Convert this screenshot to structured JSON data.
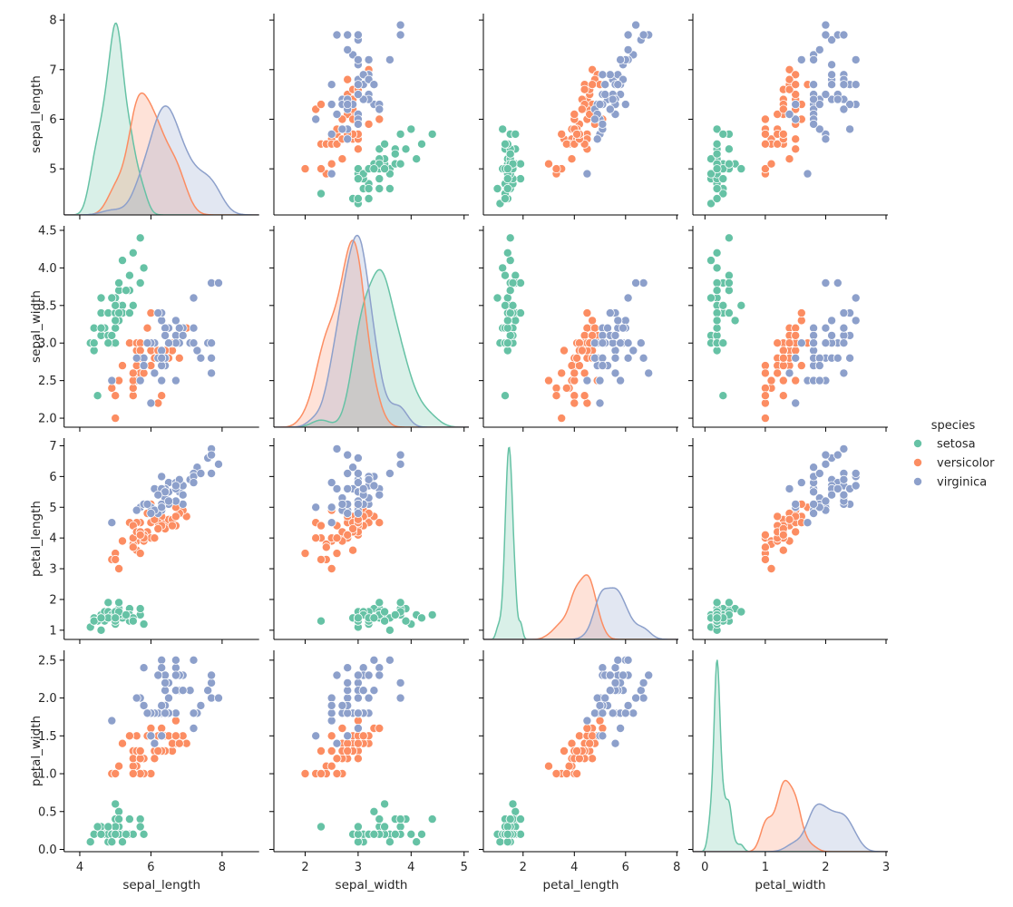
{
  "chart_data": {
    "type": "scatter",
    "subtype": "pairplot",
    "variables": [
      "sepal_length",
      "sepal_width",
      "petal_length",
      "petal_width"
    ],
    "diagonal": "kde",
    "legend": {
      "title": "species",
      "placement": "right"
    },
    "grid": false,
    "axes": {
      "sepal_length": {
        "lim": [
          3.56,
          9.04
        ],
        "xticks": [
          4,
          6,
          8
        ],
        "ylim": [
          4.07,
          8.13
        ],
        "yticks": [
          5,
          6,
          7,
          8
        ]
      },
      "sepal_width": {
        "lim": [
          1.41,
          5.09
        ],
        "xticks": [
          2,
          3,
          4,
          5
        ],
        "ylim": [
          1.88,
          4.56
        ],
        "yticks": [
          2.0,
          2.5,
          3.0,
          3.5,
          4.0,
          4.5
        ]
      },
      "petal_length": {
        "lim": [
          0.45,
          8.06
        ],
        "xticks": [
          2,
          4,
          6,
          8
        ],
        "ylim": [
          0.7,
          7.25
        ],
        "yticks": [
          1,
          2,
          3,
          4,
          5,
          6,
          7
        ]
      },
      "petal_width": {
        "lim": [
          -0.2,
          3.03
        ],
        "xticks": [
          0,
          1,
          2,
          3
        ],
        "ylim": [
          -0.03,
          2.63
        ],
        "yticks": [
          0.0,
          0.5,
          1.0,
          1.5,
          2.0,
          2.5
        ]
      }
    },
    "series": [
      {
        "name": "setosa",
        "color": "#66c2a5",
        "points": [
          [
            5.1,
            3.5,
            1.4,
            0.2
          ],
          [
            4.9,
            3.0,
            1.4,
            0.2
          ],
          [
            4.7,
            3.2,
            1.3,
            0.2
          ],
          [
            4.6,
            3.1,
            1.5,
            0.2
          ],
          [
            5.0,
            3.6,
            1.4,
            0.2
          ],
          [
            5.4,
            3.9,
            1.7,
            0.4
          ],
          [
            4.6,
            3.4,
            1.4,
            0.3
          ],
          [
            5.0,
            3.4,
            1.5,
            0.2
          ],
          [
            4.4,
            2.9,
            1.4,
            0.2
          ],
          [
            4.9,
            3.1,
            1.5,
            0.1
          ],
          [
            5.4,
            3.7,
            1.5,
            0.2
          ],
          [
            4.8,
            3.4,
            1.6,
            0.2
          ],
          [
            4.8,
            3.0,
            1.4,
            0.1
          ],
          [
            4.3,
            3.0,
            1.1,
            0.1
          ],
          [
            5.8,
            4.0,
            1.2,
            0.2
          ],
          [
            5.7,
            4.4,
            1.5,
            0.4
          ],
          [
            5.4,
            3.9,
            1.3,
            0.4
          ],
          [
            5.1,
            3.5,
            1.4,
            0.3
          ],
          [
            5.7,
            3.8,
            1.7,
            0.3
          ],
          [
            5.1,
            3.8,
            1.5,
            0.3
          ],
          [
            5.4,
            3.4,
            1.7,
            0.2
          ],
          [
            5.1,
            3.7,
            1.5,
            0.4
          ],
          [
            4.6,
            3.6,
            1.0,
            0.2
          ],
          [
            5.1,
            3.3,
            1.7,
            0.5
          ],
          [
            4.8,
            3.4,
            1.9,
            0.2
          ],
          [
            5.0,
            3.0,
            1.6,
            0.2
          ],
          [
            5.0,
            3.4,
            1.6,
            0.4
          ],
          [
            5.2,
            3.5,
            1.5,
            0.2
          ],
          [
            5.2,
            3.4,
            1.4,
            0.2
          ],
          [
            4.7,
            3.2,
            1.6,
            0.2
          ],
          [
            4.8,
            3.1,
            1.6,
            0.2
          ],
          [
            5.4,
            3.4,
            1.5,
            0.4
          ],
          [
            5.2,
            4.1,
            1.5,
            0.1
          ],
          [
            5.5,
            4.2,
            1.4,
            0.2
          ],
          [
            4.9,
            3.1,
            1.5,
            0.2
          ],
          [
            5.0,
            3.2,
            1.2,
            0.2
          ],
          [
            5.5,
            3.5,
            1.3,
            0.2
          ],
          [
            4.9,
            3.6,
            1.4,
            0.1
          ],
          [
            4.4,
            3.0,
            1.3,
            0.2
          ],
          [
            5.1,
            3.4,
            1.5,
            0.2
          ],
          [
            5.0,
            3.5,
            1.3,
            0.3
          ],
          [
            4.5,
            2.3,
            1.3,
            0.3
          ],
          [
            4.4,
            3.2,
            1.3,
            0.2
          ],
          [
            5.0,
            3.5,
            1.6,
            0.6
          ],
          [
            5.1,
            3.8,
            1.9,
            0.4
          ],
          [
            4.8,
            3.0,
            1.4,
            0.3
          ],
          [
            5.1,
            3.8,
            1.6,
            0.2
          ],
          [
            4.6,
            3.2,
            1.4,
            0.2
          ],
          [
            5.3,
            3.7,
            1.5,
            0.2
          ],
          [
            5.0,
            3.3,
            1.4,
            0.2
          ]
        ]
      },
      {
        "name": "versicolor",
        "color": "#fc8d62",
        "points": [
          [
            7.0,
            3.2,
            4.7,
            1.4
          ],
          [
            6.4,
            3.2,
            4.5,
            1.5
          ],
          [
            6.9,
            3.1,
            4.9,
            1.5
          ],
          [
            5.5,
            2.3,
            4.0,
            1.3
          ],
          [
            6.5,
            2.8,
            4.6,
            1.5
          ],
          [
            5.7,
            2.8,
            4.5,
            1.3
          ],
          [
            6.3,
            3.3,
            4.7,
            1.6
          ],
          [
            4.9,
            2.4,
            3.3,
            1.0
          ],
          [
            6.6,
            2.9,
            4.6,
            1.3
          ],
          [
            5.2,
            2.7,
            3.9,
            1.4
          ],
          [
            5.0,
            2.0,
            3.5,
            1.0
          ],
          [
            5.9,
            3.0,
            4.2,
            1.5
          ],
          [
            6.0,
            2.2,
            4.0,
            1.0
          ],
          [
            6.1,
            2.9,
            4.7,
            1.4
          ],
          [
            5.6,
            2.9,
            3.6,
            1.3
          ],
          [
            6.7,
            3.1,
            4.4,
            1.4
          ],
          [
            5.6,
            3.0,
            4.5,
            1.5
          ],
          [
            5.8,
            2.7,
            4.1,
            1.0
          ],
          [
            6.2,
            2.2,
            4.5,
            1.5
          ],
          [
            5.6,
            2.5,
            3.9,
            1.1
          ],
          [
            5.9,
            3.2,
            4.8,
            1.8
          ],
          [
            6.1,
            2.8,
            4.0,
            1.3
          ],
          [
            6.3,
            2.5,
            4.9,
            1.5
          ],
          [
            6.1,
            2.8,
            4.7,
            1.2
          ],
          [
            6.4,
            2.9,
            4.3,
            1.3
          ],
          [
            6.6,
            3.0,
            4.4,
            1.4
          ],
          [
            6.8,
            2.8,
            4.8,
            1.4
          ],
          [
            6.7,
            3.0,
            5.0,
            1.7
          ],
          [
            6.0,
            2.9,
            4.5,
            1.5
          ],
          [
            5.7,
            2.6,
            3.5,
            1.0
          ],
          [
            5.5,
            2.4,
            3.8,
            1.1
          ],
          [
            5.5,
            2.4,
            3.7,
            1.0
          ],
          [
            5.8,
            2.7,
            3.9,
            1.2
          ],
          [
            6.0,
            2.7,
            5.1,
            1.6
          ],
          [
            5.4,
            3.0,
            4.5,
            1.5
          ],
          [
            6.0,
            3.4,
            4.5,
            1.6
          ],
          [
            6.7,
            3.1,
            4.7,
            1.5
          ],
          [
            6.3,
            2.3,
            4.4,
            1.3
          ],
          [
            5.6,
            3.0,
            4.1,
            1.3
          ],
          [
            5.5,
            2.5,
            4.0,
            1.3
          ],
          [
            5.5,
            2.6,
            4.4,
            1.2
          ],
          [
            6.1,
            3.0,
            4.6,
            1.4
          ],
          [
            5.8,
            2.6,
            4.0,
            1.2
          ],
          [
            5.0,
            2.3,
            3.3,
            1.0
          ],
          [
            5.6,
            2.7,
            4.2,
            1.3
          ],
          [
            5.7,
            3.0,
            4.2,
            1.2
          ],
          [
            5.7,
            2.9,
            4.2,
            1.3
          ],
          [
            6.2,
            2.9,
            4.3,
            1.3
          ],
          [
            5.1,
            2.5,
            3.0,
            1.1
          ],
          [
            5.7,
            2.8,
            4.1,
            1.3
          ]
        ]
      },
      {
        "name": "virginica",
        "color": "#8da0cb",
        "points": [
          [
            6.3,
            3.3,
            6.0,
            2.5
          ],
          [
            5.8,
            2.7,
            5.1,
            1.9
          ],
          [
            7.1,
            3.0,
            5.9,
            2.1
          ],
          [
            6.3,
            2.9,
            5.6,
            1.8
          ],
          [
            6.5,
            3.0,
            5.8,
            2.2
          ],
          [
            7.6,
            3.0,
            6.6,
            2.1
          ],
          [
            4.9,
            2.5,
            4.5,
            1.7
          ],
          [
            7.3,
            2.9,
            6.3,
            1.8
          ],
          [
            6.7,
            2.5,
            5.8,
            1.8
          ],
          [
            7.2,
            3.6,
            6.1,
            2.5
          ],
          [
            6.5,
            3.2,
            5.1,
            2.0
          ],
          [
            6.4,
            2.7,
            5.3,
            1.9
          ],
          [
            6.8,
            3.0,
            5.5,
            2.1
          ],
          [
            5.7,
            2.5,
            5.0,
            2.0
          ],
          [
            5.8,
            2.8,
            5.1,
            2.4
          ],
          [
            6.4,
            3.2,
            5.3,
            2.3
          ],
          [
            6.5,
            3.0,
            5.5,
            1.8
          ],
          [
            7.7,
            3.8,
            6.7,
            2.2
          ],
          [
            7.7,
            2.6,
            6.9,
            2.3
          ],
          [
            6.0,
            2.2,
            5.0,
            1.5
          ],
          [
            6.9,
            3.2,
            5.7,
            2.3
          ],
          [
            5.6,
            2.8,
            4.9,
            2.0
          ],
          [
            7.7,
            2.8,
            6.7,
            2.0
          ],
          [
            6.3,
            2.7,
            4.9,
            1.8
          ],
          [
            6.7,
            3.3,
            5.7,
            2.1
          ],
          [
            7.2,
            3.2,
            6.0,
            1.8
          ],
          [
            6.2,
            2.8,
            4.8,
            1.8
          ],
          [
            6.1,
            3.0,
            4.9,
            1.8
          ],
          [
            6.4,
            2.8,
            5.6,
            2.1
          ],
          [
            7.2,
            3.0,
            5.8,
            1.6
          ],
          [
            7.4,
            2.8,
            6.1,
            1.9
          ],
          [
            7.9,
            3.8,
            6.4,
            2.0
          ],
          [
            6.4,
            2.8,
            5.6,
            2.2
          ],
          [
            6.3,
            2.8,
            5.1,
            1.5
          ],
          [
            6.1,
            2.6,
            5.6,
            1.4
          ],
          [
            7.7,
            3.0,
            6.1,
            2.3
          ],
          [
            6.3,
            3.4,
            5.6,
            2.4
          ],
          [
            6.4,
            3.1,
            5.5,
            1.8
          ],
          [
            6.0,
            3.0,
            4.8,
            1.8
          ],
          [
            6.9,
            3.1,
            5.4,
            2.1
          ],
          [
            6.7,
            3.1,
            5.6,
            2.4
          ],
          [
            6.9,
            3.1,
            5.1,
            2.3
          ],
          [
            5.8,
            2.7,
            5.1,
            1.9
          ],
          [
            6.8,
            3.2,
            5.9,
            2.3
          ],
          [
            6.7,
            3.3,
            5.7,
            2.5
          ],
          [
            6.7,
            3.0,
            5.2,
            2.3
          ],
          [
            6.3,
            2.5,
            5.0,
            1.9
          ],
          [
            6.5,
            3.0,
            5.2,
            2.0
          ],
          [
            6.2,
            3.4,
            5.4,
            2.3
          ],
          [
            5.9,
            3.0,
            5.1,
            1.8
          ]
        ]
      }
    ]
  }
}
